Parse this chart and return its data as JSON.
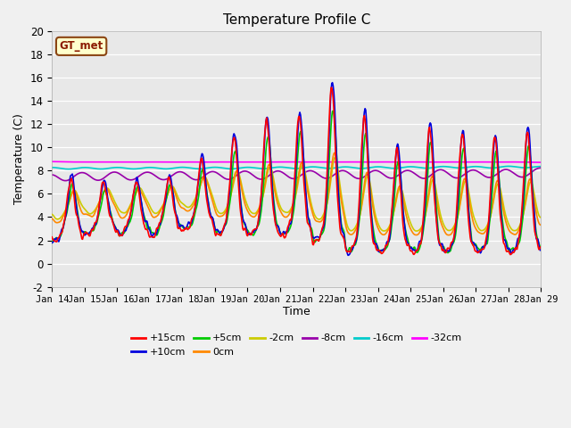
{
  "title": "Temperature Profile C",
  "xlabel": "Time",
  "ylabel": "Temperature (C)",
  "ylim": [
    -2,
    20
  ],
  "xlim": [
    0,
    360
  ],
  "xtick_labels": [
    "Jan 14",
    "Jan 15",
    "Jan 16",
    "Jan 17",
    "Jan 18",
    "Jan 19",
    "Jan 20",
    "Jan 21",
    "Jan 22",
    "Jan 23",
    "Jan 24",
    "Jan 25",
    "Jan 26",
    "Jan 27",
    "Jan 28",
    "Jan 29"
  ],
  "series_labels": [
    "+15cm",
    "+10cm",
    "+5cm",
    "0cm",
    "-2cm",
    "-8cm",
    "-16cm",
    "-32cm"
  ],
  "series_colors": [
    "#ff0000",
    "#0000dd",
    "#00cc00",
    "#ff8800",
    "#cccc00",
    "#9900aa",
    "#00cccc",
    "#ff00ff"
  ],
  "gt_met_label": "GT_met",
  "bg_color": "#e8e8e8",
  "title_fontsize": 11,
  "fig_bg": "#f0f0f0"
}
